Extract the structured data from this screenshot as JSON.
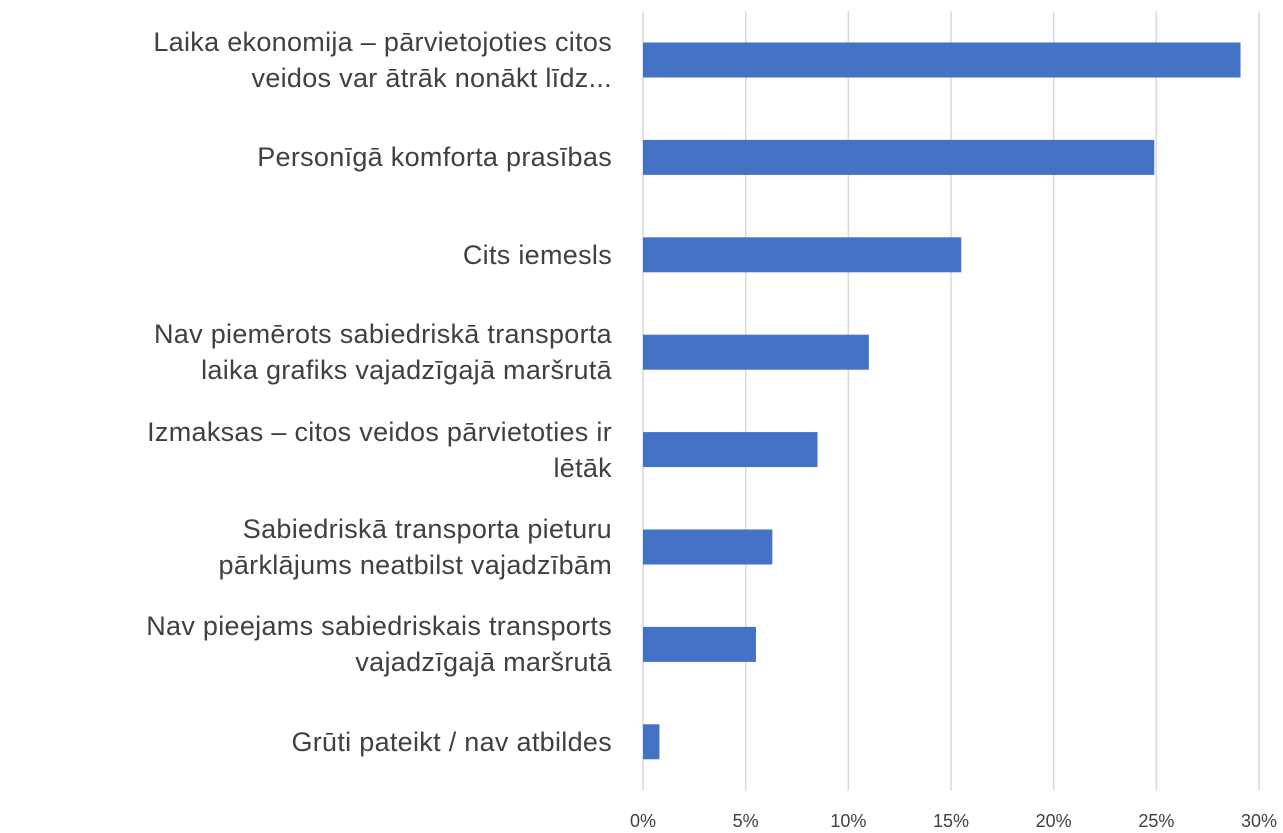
{
  "chart_data": {
    "type": "barh",
    "categories": [
      "Laika ekonomija – pārvietojoties citos\nveidos var ātrāk nonākt līdz...",
      "Personīgā komforta prasības",
      "Cits iemesls",
      "Nav piemērots sabiedriskā transporta\nlaika grafiks vajadzīgajā maršrutā",
      "Izmaksas – citos veidos pārvietoties ir\nlētāk",
      "Sabiedriskā transporta pieturu\npārklājums neatbilst vajadzībām",
      "Nav pieejams sabiedriskais transports\nvajadzīgajā maršrutā",
      "Grūti pateikt / nav atbildes"
    ],
    "values": [
      29.1,
      24.9,
      15.5,
      11.0,
      8.5,
      6.3,
      5.5,
      0.8
    ],
    "color": "#4472c4",
    "xlim": [
      0,
      30
    ],
    "xticks": [
      {
        "value": 0,
        "label": "0%"
      },
      {
        "value": 5,
        "label": "5%"
      },
      {
        "value": 10,
        "label": "10%"
      },
      {
        "value": 15,
        "label": "15%"
      },
      {
        "value": 20,
        "label": "20%"
      },
      {
        "value": 25,
        "label": "25%"
      },
      {
        "value": 30,
        "label": "30%"
      }
    ],
    "grid": true
  }
}
